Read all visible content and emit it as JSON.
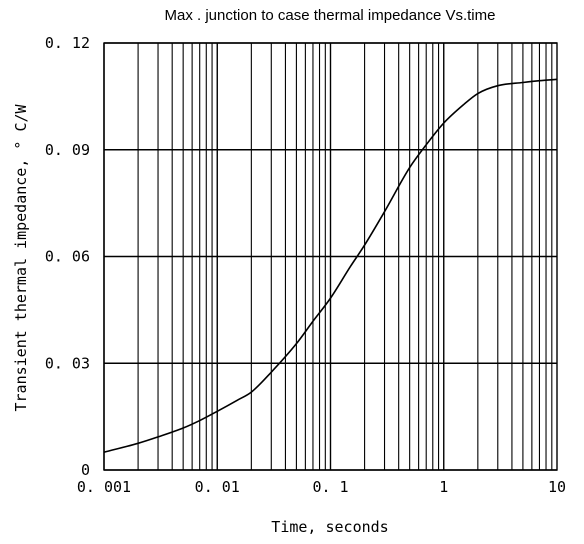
{
  "chart_data": {
    "type": "line",
    "title": "Max . junction to case thermal impedance Vs.time",
    "xlabel": "Time, seconds",
    "ylabel": "Transient thermal impedance, ° C/W",
    "xscale": "log",
    "xlim": [
      0.001,
      10
    ],
    "ylim": [
      0,
      0.12
    ],
    "grid": true,
    "x_ticks": [
      0.001,
      0.01,
      0.1,
      1,
      10
    ],
    "x_tick_labels": [
      "0. 001",
      "0. 01",
      "0. 1",
      "1",
      "10"
    ],
    "y_ticks": [
      0,
      0.03,
      0.06,
      0.09,
      0.12
    ],
    "y_tick_labels": [
      "0",
      "0. 03",
      "0. 06",
      "0. 09",
      "0. 12"
    ],
    "series": [
      {
        "x": [
          0.001,
          0.002,
          0.003,
          0.005,
          0.007,
          0.01,
          0.015,
          0.02,
          0.03,
          0.05,
          0.07,
          0.1,
          0.15,
          0.2,
          0.3,
          0.5,
          0.7,
          1,
          1.5,
          2,
          3,
          5,
          7,
          10
        ],
        "y": [
          0.005,
          0.0075,
          0.0093,
          0.0118,
          0.0139,
          0.0165,
          0.0196,
          0.0219,
          0.0275,
          0.0355,
          0.0418,
          0.0483,
          0.0572,
          0.0632,
          0.0726,
          0.085,
          0.0914,
          0.0975,
          0.1027,
          0.1058,
          0.108,
          0.1089,
          0.1094,
          0.1098
        ]
      }
    ]
  },
  "style": {
    "line_color": "#000000",
    "grid_color": "#000000",
    "background": "#ffffff"
  }
}
